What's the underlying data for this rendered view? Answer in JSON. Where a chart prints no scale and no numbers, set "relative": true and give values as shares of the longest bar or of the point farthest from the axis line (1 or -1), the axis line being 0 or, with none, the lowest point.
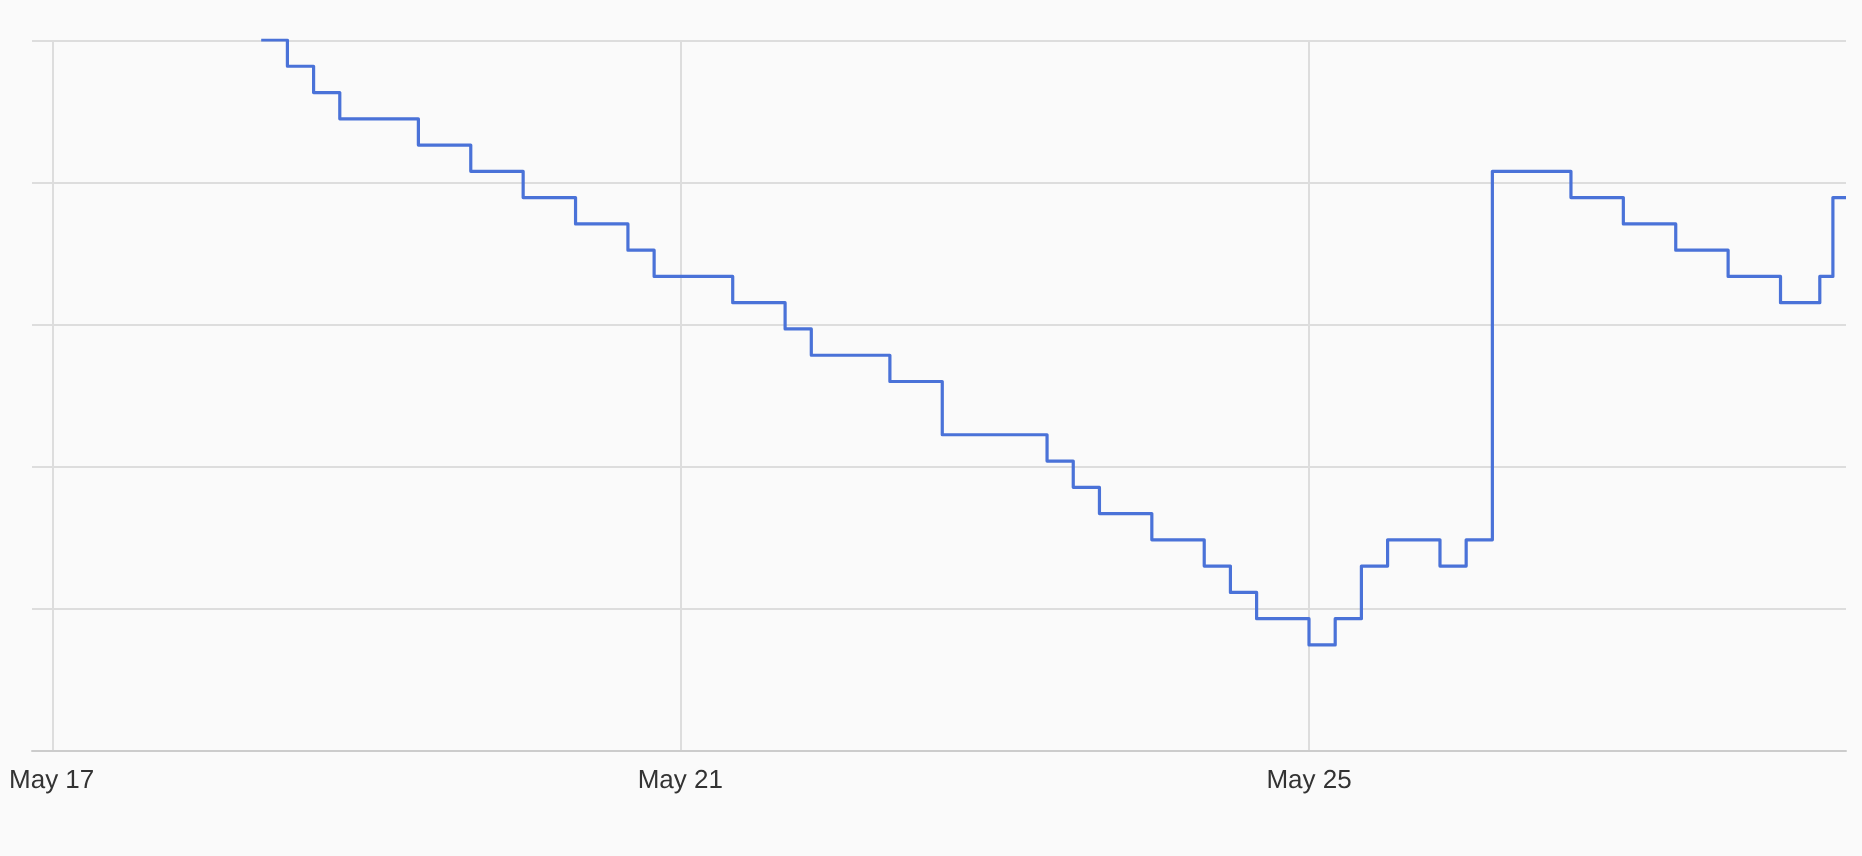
{
  "chart_data": {
    "type": "step",
    "relative": true,
    "grid": true,
    "line_style": "solid",
    "marker": "none",
    "x": [
      "--05-18T08:00",
      "--05-18T12:00",
      "--05-18T16:00",
      "--05-18T20:00",
      "--05-19T08:00",
      "--05-19T16:00",
      "--05-20T00:00",
      "--05-20T08:00",
      "--05-20T16:00",
      "--05-20T20:00",
      "--05-21T08:00",
      "--05-21T16:00",
      "--05-21T20:00",
      "--05-22T08:00",
      "--05-22T16:00",
      "--05-23T08:00",
      "--05-23T12:00",
      "--05-23T16:00",
      "--05-24T00:00",
      "--05-24T08:00",
      "--05-24T12:00",
      "--05-24T16:00",
      "--05-25T00:00",
      "--05-25T04:00",
      "--05-25T08:00",
      "--05-25T12:00",
      "--05-25T20:00",
      "--05-26T00:00",
      "--05-26T04:00",
      "--05-26T16:00",
      "--05-27T00:00",
      "--05-27T08:00",
      "--05-27T16:00",
      "--05-28T00:00",
      "--05-28T06:00",
      "--05-28T08:00",
      "--05-28T10:00"
    ],
    "series": [
      {
        "color": "#4a72d8",
        "values": [
          1,
          0.963,
          0.926,
          0.889,
          0.852,
          0.815,
          0.778,
          0.741,
          0.704,
          0.667,
          0.63,
          0.593,
          0.556,
          0.519,
          0.444,
          0.407,
          0.37,
          0.333,
          0.296,
          0.259,
          0.222,
          0.185,
          0.148,
          0.185,
          0.259,
          0.296,
          0.259,
          0.296,
          0.815,
          0.778,
          0.741,
          0.704,
          0.667,
          0.63,
          0.667,
          0.778,
          0.778
        ]
      }
    ],
    "xlim": [
      "--05-16T21:00",
      "--05-28T10:00"
    ],
    "xticks": [
      {
        "value": "--05-17",
        "label": "May 17"
      },
      {
        "value": "--05-21",
        "label": "May 21"
      },
      {
        "value": "--05-25",
        "label": "May 25"
      }
    ]
  }
}
